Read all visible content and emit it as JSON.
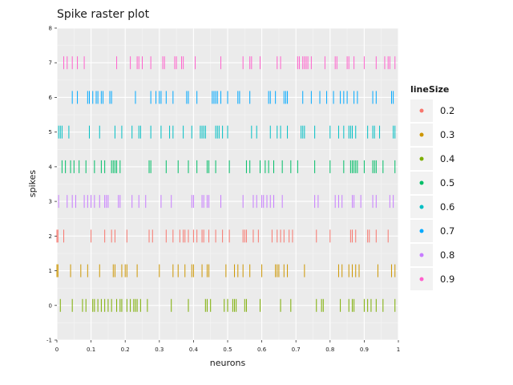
{
  "chart_data": {
    "type": "scatter",
    "title": "Spike raster plot",
    "xlabel": "neurons",
    "ylabel": "spikes",
    "xlim": [
      0,
      1
    ],
    "ylim": [
      -1,
      8
    ],
    "x_ticks": [
      "0",
      "0.1",
      "0.2",
      "0.3",
      "0.4",
      "0.5",
      "0.6",
      "0.7",
      "0.8",
      "0.9",
      "1"
    ],
    "y_ticks": [
      "-1",
      "0",
      "1",
      "2",
      "3",
      "4",
      "5",
      "6",
      "7",
      "8"
    ],
    "grid": true,
    "legend": {
      "title": "lineSize",
      "position": "right",
      "entries": [
        {
          "label": "0.2",
          "color": "#F8766D"
        },
        {
          "label": "0.3",
          "color": "#CD9600"
        },
        {
          "label": "0.4",
          "color": "#7CAE00"
        },
        {
          "label": "0.5",
          "color": "#00BE67"
        },
        {
          "label": "0.6",
          "color": "#00BFC4"
        },
        {
          "label": "0.7",
          "color": "#00A9FF"
        },
        {
          "label": "0.8",
          "color": "#C77CFF"
        },
        {
          "label": "0.9",
          "color": "#FF61CC"
        }
      ]
    },
    "series": [
      {
        "lineSize": "0.4",
        "color": "#7CAE00",
        "y": 0,
        "x": [
          0.01,
          0.045,
          0.075,
          0.085,
          0.105,
          0.11,
          0.12,
          0.13,
          0.14,
          0.15,
          0.16,
          0.175,
          0.185,
          0.19,
          0.205,
          0.215,
          0.225,
          0.23,
          0.235,
          0.245,
          0.265,
          0.335,
          0.385,
          0.435,
          0.44,
          0.45,
          0.49,
          0.5,
          0.515,
          0.52,
          0.525,
          0.55,
          0.555,
          0.595,
          0.655,
          0.685,
          0.76,
          0.775,
          0.78,
          0.83,
          0.855,
          0.865,
          0.87,
          0.9,
          0.91,
          0.92,
          0.935,
          0.955,
          0.99
        ]
      },
      {
        "lineSize": "0.3",
        "color": "#CD9600",
        "y": 1,
        "x": [
          0.0,
          0.003,
          0.04,
          0.07,
          0.09,
          0.125,
          0.165,
          0.17,
          0.19,
          0.2,
          0.205,
          0.235,
          0.3,
          0.34,
          0.355,
          0.375,
          0.395,
          0.4,
          0.425,
          0.44,
          0.445,
          0.495,
          0.52,
          0.53,
          0.545,
          0.565,
          0.6,
          0.64,
          0.645,
          0.65,
          0.665,
          0.675,
          0.725,
          0.825,
          0.835,
          0.855,
          0.865,
          0.875,
          0.885,
          0.94,
          0.98,
          0.99
        ]
      },
      {
        "lineSize": "0.2",
        "color": "#F8766D",
        "y": 2,
        "x": [
          0.0,
          0.003,
          0.02,
          0.1,
          0.14,
          0.16,
          0.17,
          0.205,
          0.27,
          0.28,
          0.32,
          0.34,
          0.36,
          0.37,
          0.375,
          0.385,
          0.4,
          0.41,
          0.425,
          0.43,
          0.445,
          0.465,
          0.485,
          0.505,
          0.545,
          0.55,
          0.555,
          0.575,
          0.59,
          0.63,
          0.645,
          0.655,
          0.665,
          0.68,
          0.69,
          0.76,
          0.8,
          0.86,
          0.865,
          0.875,
          0.91,
          0.915,
          0.935,
          0.97
        ]
      },
      {
        "lineSize": "0.8",
        "color": "#C77CFF",
        "y": 3,
        "x": [
          0.005,
          0.03,
          0.045,
          0.055,
          0.08,
          0.09,
          0.1,
          0.11,
          0.125,
          0.14,
          0.145,
          0.15,
          0.18,
          0.185,
          0.22,
          0.24,
          0.26,
          0.305,
          0.335,
          0.395,
          0.4,
          0.425,
          0.43,
          0.44,
          0.445,
          0.48,
          0.545,
          0.575,
          0.585,
          0.6,
          0.605,
          0.615,
          0.625,
          0.635,
          0.66,
          0.755,
          0.765,
          0.815,
          0.825,
          0.835,
          0.865,
          0.87,
          0.89,
          0.925,
          0.935,
          0.975,
          0.985
        ]
      },
      {
        "lineSize": "0.5",
        "color": "#00BE67",
        "y": 4,
        "x": [
          0.015,
          0.025,
          0.04,
          0.05,
          0.065,
          0.085,
          0.11,
          0.13,
          0.14,
          0.16,
          0.165,
          0.17,
          0.175,
          0.185,
          0.27,
          0.275,
          0.32,
          0.355,
          0.385,
          0.41,
          0.44,
          0.445,
          0.465,
          0.505,
          0.555,
          0.565,
          0.595,
          0.61,
          0.62,
          0.635,
          0.66,
          0.685,
          0.705,
          0.755,
          0.8,
          0.84,
          0.86,
          0.865,
          0.87,
          0.875,
          0.88,
          0.9,
          0.925,
          0.93,
          0.935,
          0.955,
          0.99
        ]
      },
      {
        "lineSize": "0.6",
        "color": "#00BFC4",
        "y": 5,
        "x": [
          0.005,
          0.01,
          0.015,
          0.035,
          0.095,
          0.125,
          0.17,
          0.19,
          0.22,
          0.24,
          0.245,
          0.275,
          0.305,
          0.33,
          0.34,
          0.37,
          0.395,
          0.42,
          0.425,
          0.43,
          0.435,
          0.465,
          0.47,
          0.475,
          0.485,
          0.5,
          0.57,
          0.585,
          0.625,
          0.645,
          0.655,
          0.675,
          0.715,
          0.72,
          0.725,
          0.755,
          0.8,
          0.825,
          0.84,
          0.855,
          0.86,
          0.865,
          0.875,
          0.91,
          0.925,
          0.93,
          0.945,
          0.985,
          0.99
        ]
      },
      {
        "lineSize": "0.7",
        "color": "#00A9FF",
        "y": 6,
        "x": [
          0.045,
          0.06,
          0.09,
          0.095,
          0.105,
          0.115,
          0.12,
          0.13,
          0.135,
          0.155,
          0.16,
          0.23,
          0.275,
          0.29,
          0.3,
          0.305,
          0.32,
          0.34,
          0.38,
          0.385,
          0.41,
          0.455,
          0.46,
          0.465,
          0.47,
          0.48,
          0.5,
          0.53,
          0.535,
          0.565,
          0.62,
          0.625,
          0.64,
          0.665,
          0.67,
          0.675,
          0.72,
          0.745,
          0.77,
          0.79,
          0.81,
          0.83,
          0.84,
          0.85,
          0.87,
          0.88,
          0.925,
          0.935,
          0.98,
          0.985
        ]
      },
      {
        "lineSize": "0.9",
        "color": "#FF61CC",
        "y": 7,
        "x": [
          0.02,
          0.03,
          0.045,
          0.06,
          0.08,
          0.175,
          0.215,
          0.235,
          0.24,
          0.25,
          0.275,
          0.31,
          0.315,
          0.345,
          0.35,
          0.365,
          0.37,
          0.405,
          0.48,
          0.545,
          0.565,
          0.57,
          0.595,
          0.645,
          0.655,
          0.705,
          0.71,
          0.72,
          0.725,
          0.73,
          0.735,
          0.745,
          0.785,
          0.815,
          0.82,
          0.85,
          0.855,
          0.87,
          0.9,
          0.935,
          0.96,
          0.97,
          0.975,
          0.99
        ]
      }
    ]
  }
}
